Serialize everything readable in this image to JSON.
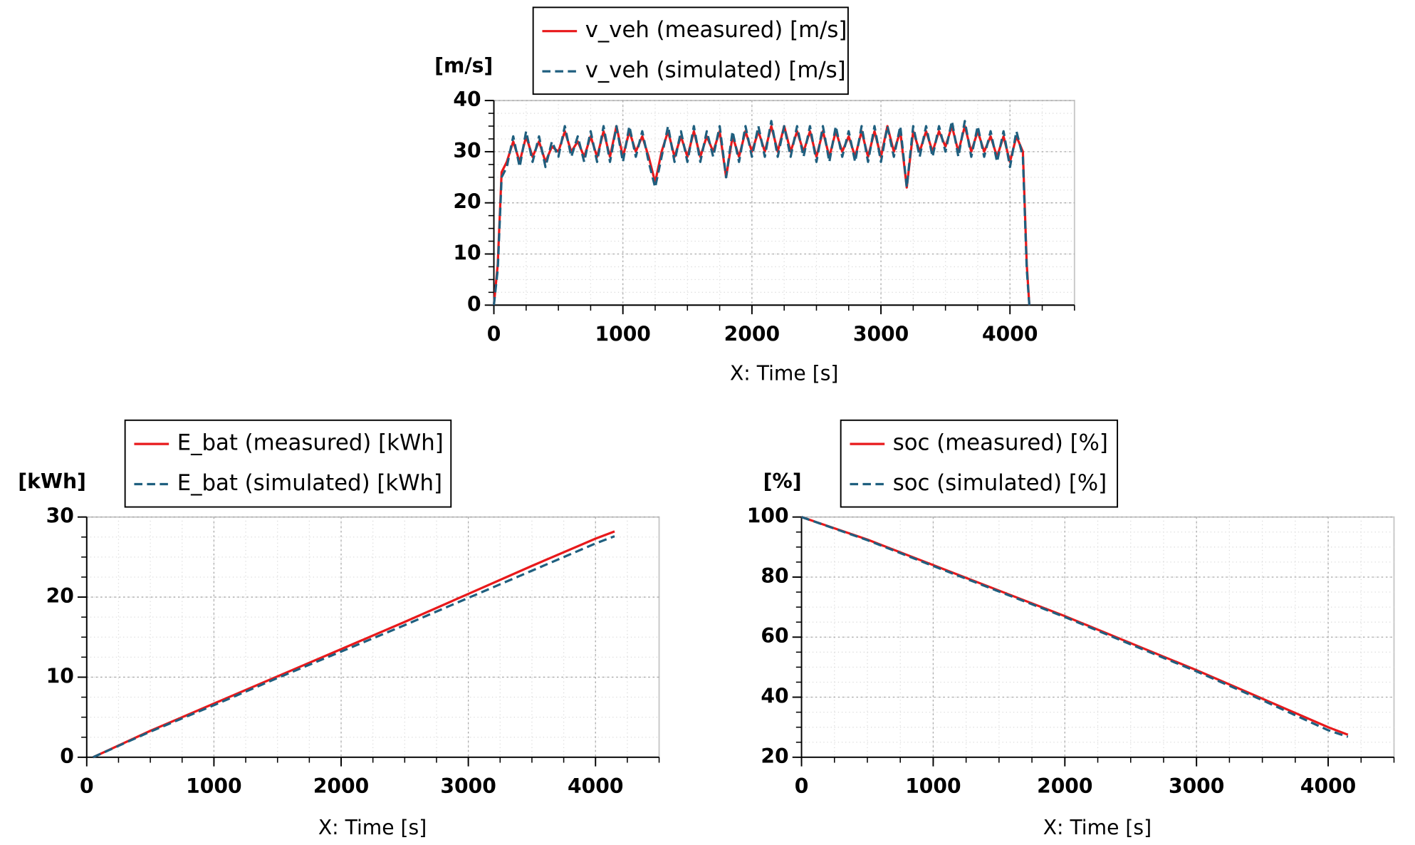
{
  "chart_data": [
    {
      "type": "line",
      "y_label": "[m/s]",
      "x_label": "X: Time [s]",
      "x": [
        0,
        30,
        60,
        100,
        150,
        200,
        250,
        300,
        350,
        400,
        450,
        500,
        550,
        600,
        650,
        700,
        750,
        800,
        850,
        900,
        950,
        1000,
        1050,
        1100,
        1150,
        1200,
        1250,
        1300,
        1350,
        1400,
        1450,
        1500,
        1550,
        1600,
        1650,
        1700,
        1750,
        1800,
        1850,
        1900,
        1950,
        2000,
        2050,
        2100,
        2150,
        2200,
        2250,
        2300,
        2350,
        2400,
        2450,
        2500,
        2550,
        2600,
        2650,
        2700,
        2750,
        2800,
        2850,
        2900,
        2950,
        3000,
        3050,
        3100,
        3150,
        3200,
        3250,
        3300,
        3350,
        3400,
        3450,
        3500,
        3550,
        3600,
        3650,
        3700,
        3750,
        3800,
        3850,
        3900,
        3950,
        4000,
        4050,
        4100,
        4130,
        4150
      ],
      "series": [
        {
          "name": "v_veh (measured) [m/s]",
          "color": "#e8191b",
          "linestyle": "solid",
          "values": [
            0,
            8,
            26,
            28,
            32,
            28,
            33,
            29,
            32,
            28,
            31,
            30,
            34,
            30,
            32,
            29,
            33,
            29,
            34,
            29,
            35,
            29,
            34,
            30,
            33,
            29,
            24,
            30,
            34,
            29,
            33,
            29,
            34,
            29,
            33,
            30,
            34,
            25,
            33,
            29,
            34,
            30,
            34,
            30,
            35,
            30,
            35,
            30,
            34,
            30,
            34,
            29,
            34,
            29,
            34,
            30,
            33,
            29,
            34,
            29,
            34,
            29,
            35,
            30,
            34,
            23,
            34,
            30,
            34,
            30,
            34,
            31,
            35,
            30,
            35,
            30,
            34,
            30,
            33,
            29,
            33,
            28,
            33,
            30,
            8,
            0
          ]
        },
        {
          "name": "v_veh (simulated) [m/s]",
          "color": "#1f5f7f",
          "linestyle": "dashed",
          "values": [
            0,
            7,
            25,
            27,
            33,
            27,
            34,
            28,
            33,
            27,
            32,
            29,
            35,
            29,
            33,
            28,
            34,
            28,
            35,
            28,
            35,
            28,
            35,
            29,
            34,
            28,
            23,
            29,
            35,
            28,
            34,
            28,
            35,
            28,
            34,
            29,
            35,
            25,
            34,
            28,
            35,
            29,
            35,
            29,
            36,
            29,
            35,
            29,
            35,
            29,
            35,
            28,
            35,
            28,
            35,
            29,
            34,
            28,
            35,
            28,
            35,
            28,
            35,
            29,
            35,
            23,
            35,
            29,
            35,
            29,
            35,
            30,
            36,
            29,
            36,
            29,
            35,
            29,
            34,
            28,
            34,
            27,
            34,
            29,
            7,
            0
          ]
        }
      ],
      "xlim": [
        0,
        4500
      ],
      "xticks": [
        0,
        1000,
        2000,
        3000,
        4000
      ],
      "ylim": [
        0,
        40
      ],
      "yticks": [
        0,
        10,
        20,
        30,
        40
      ],
      "grid": true
    },
    {
      "type": "line",
      "y_label": "[kWh]",
      "x_label": "X: Time [s]",
      "x": [
        50,
        500,
        1000,
        1500,
        2000,
        2500,
        3000,
        3500,
        4000,
        4150
      ],
      "series": [
        {
          "name": "E_bat (measured) [kWh]",
          "color": "#e8191b",
          "linestyle": "solid",
          "values": [
            0,
            3.3,
            6.7,
            10.1,
            13.5,
            16.9,
            20.4,
            23.9,
            27.3,
            28.2
          ]
        },
        {
          "name": "E_bat (simulated) [kWh]",
          "color": "#1f5f7f",
          "linestyle": "dashed",
          "values": [
            0,
            3.2,
            6.5,
            9.9,
            13.2,
            16.5,
            19.9,
            23.3,
            26.7,
            27.6
          ]
        }
      ],
      "xlim": [
        0,
        4500
      ],
      "xticks": [
        0,
        1000,
        2000,
        3000,
        4000
      ],
      "ylim": [
        0,
        30
      ],
      "yticks": [
        0,
        10,
        20,
        30
      ],
      "grid": true
    },
    {
      "type": "line",
      "y_label": "[%]",
      "x_label": "X: Time [s]",
      "x": [
        0,
        500,
        1000,
        1500,
        2000,
        2500,
        3000,
        3500,
        4000,
        4150
      ],
      "series": [
        {
          "name": "soc (measured) [%]",
          "color": "#e8191b",
          "linestyle": "solid",
          "values": [
            100,
            92.5,
            84,
            75.5,
            67,
            58,
            49,
            39.5,
            30,
            27.5
          ]
        },
        {
          "name": "soc (simulated) [%]",
          "color": "#1f5f7f",
          "linestyle": "dashed",
          "values": [
            100,
            92.3,
            83.7,
            75.2,
            66.7,
            57.6,
            48.6,
            39,
            29,
            26.8
          ]
        }
      ],
      "xlim": [
        0,
        4500
      ],
      "xticks": [
        0,
        1000,
        2000,
        3000,
        4000
      ],
      "ylim": [
        20,
        100
      ],
      "yticks": [
        20,
        40,
        60,
        80,
        100
      ],
      "grid": true
    }
  ]
}
